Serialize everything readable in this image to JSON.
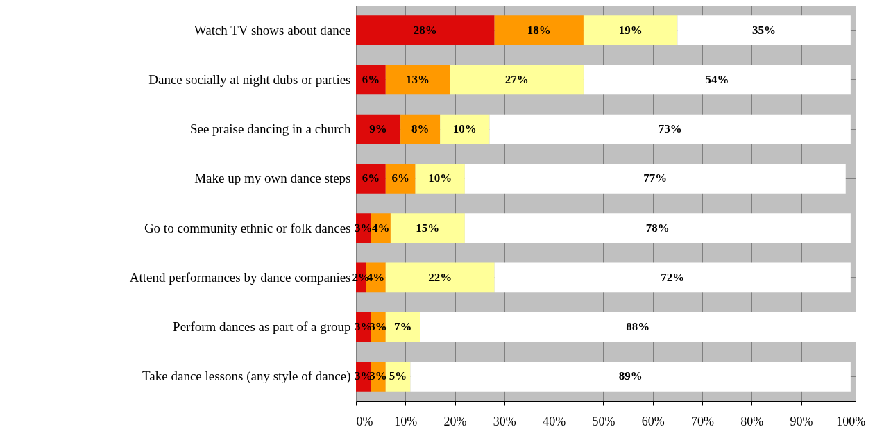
{
  "chart_data": {
    "type": "bar",
    "orientation": "horizontal",
    "stacked": true,
    "grid": true,
    "categories": [
      "Watch TV shows about dance",
      "Dance socially at night dubs or parties",
      "See praise dancing in a church",
      "Make up my own dance steps",
      "Go to community ethnic or folk dances",
      "Attend performances by dance companies",
      "Perform dances as part of a group",
      "Take dance lessons (any style of dance)"
    ],
    "series": [
      {
        "color": "#dd0a0a",
        "values": [
          28,
          6,
          9,
          6,
          3,
          2,
          3,
          3
        ],
        "value_labels": [
          "28%",
          "6%",
          "9%",
          "6%",
          "3%",
          "2%",
          "3%",
          "3%"
        ]
      },
      {
        "color": "#ff9900",
        "values": [
          18,
          13,
          8,
          6,
          4,
          4,
          3,
          3
        ],
        "value_labels": [
          "18%",
          "13%",
          "8%",
          "6%",
          "4%",
          "4%",
          "3%",
          "3%"
        ]
      },
      {
        "color": "#ffff99",
        "values": [
          19,
          27,
          10,
          10,
          15,
          22,
          7,
          5
        ],
        "value_labels": [
          "19%",
          "27%",
          "10%",
          "10%",
          "15%",
          "22%",
          "7%",
          "5%"
        ]
      },
      {
        "color": "#ffffff",
        "values": [
          35,
          54,
          73,
          77,
          78,
          72,
          88,
          89
        ],
        "value_labels": [
          "35%",
          "54%",
          "73%",
          "77%",
          "78%",
          "72%",
          "88%",
          "89%"
        ]
      }
    ],
    "xlim": [
      0,
      101
    ],
    "xticks": [
      {
        "value": 0,
        "label": "0%"
      },
      {
        "value": 10,
        "label": "10%"
      },
      {
        "value": 20,
        "label": "20%"
      },
      {
        "value": 30,
        "label": "30%"
      },
      {
        "value": 40,
        "label": "40%"
      },
      {
        "value": 50,
        "label": "50%"
      },
      {
        "value": 60,
        "label": "60%"
      },
      {
        "value": 70,
        "label": "70%"
      },
      {
        "value": 80,
        "label": "80%"
      },
      {
        "value": 90,
        "label": "90%"
      },
      {
        "value": 100,
        "label": "100%"
      }
    ]
  }
}
